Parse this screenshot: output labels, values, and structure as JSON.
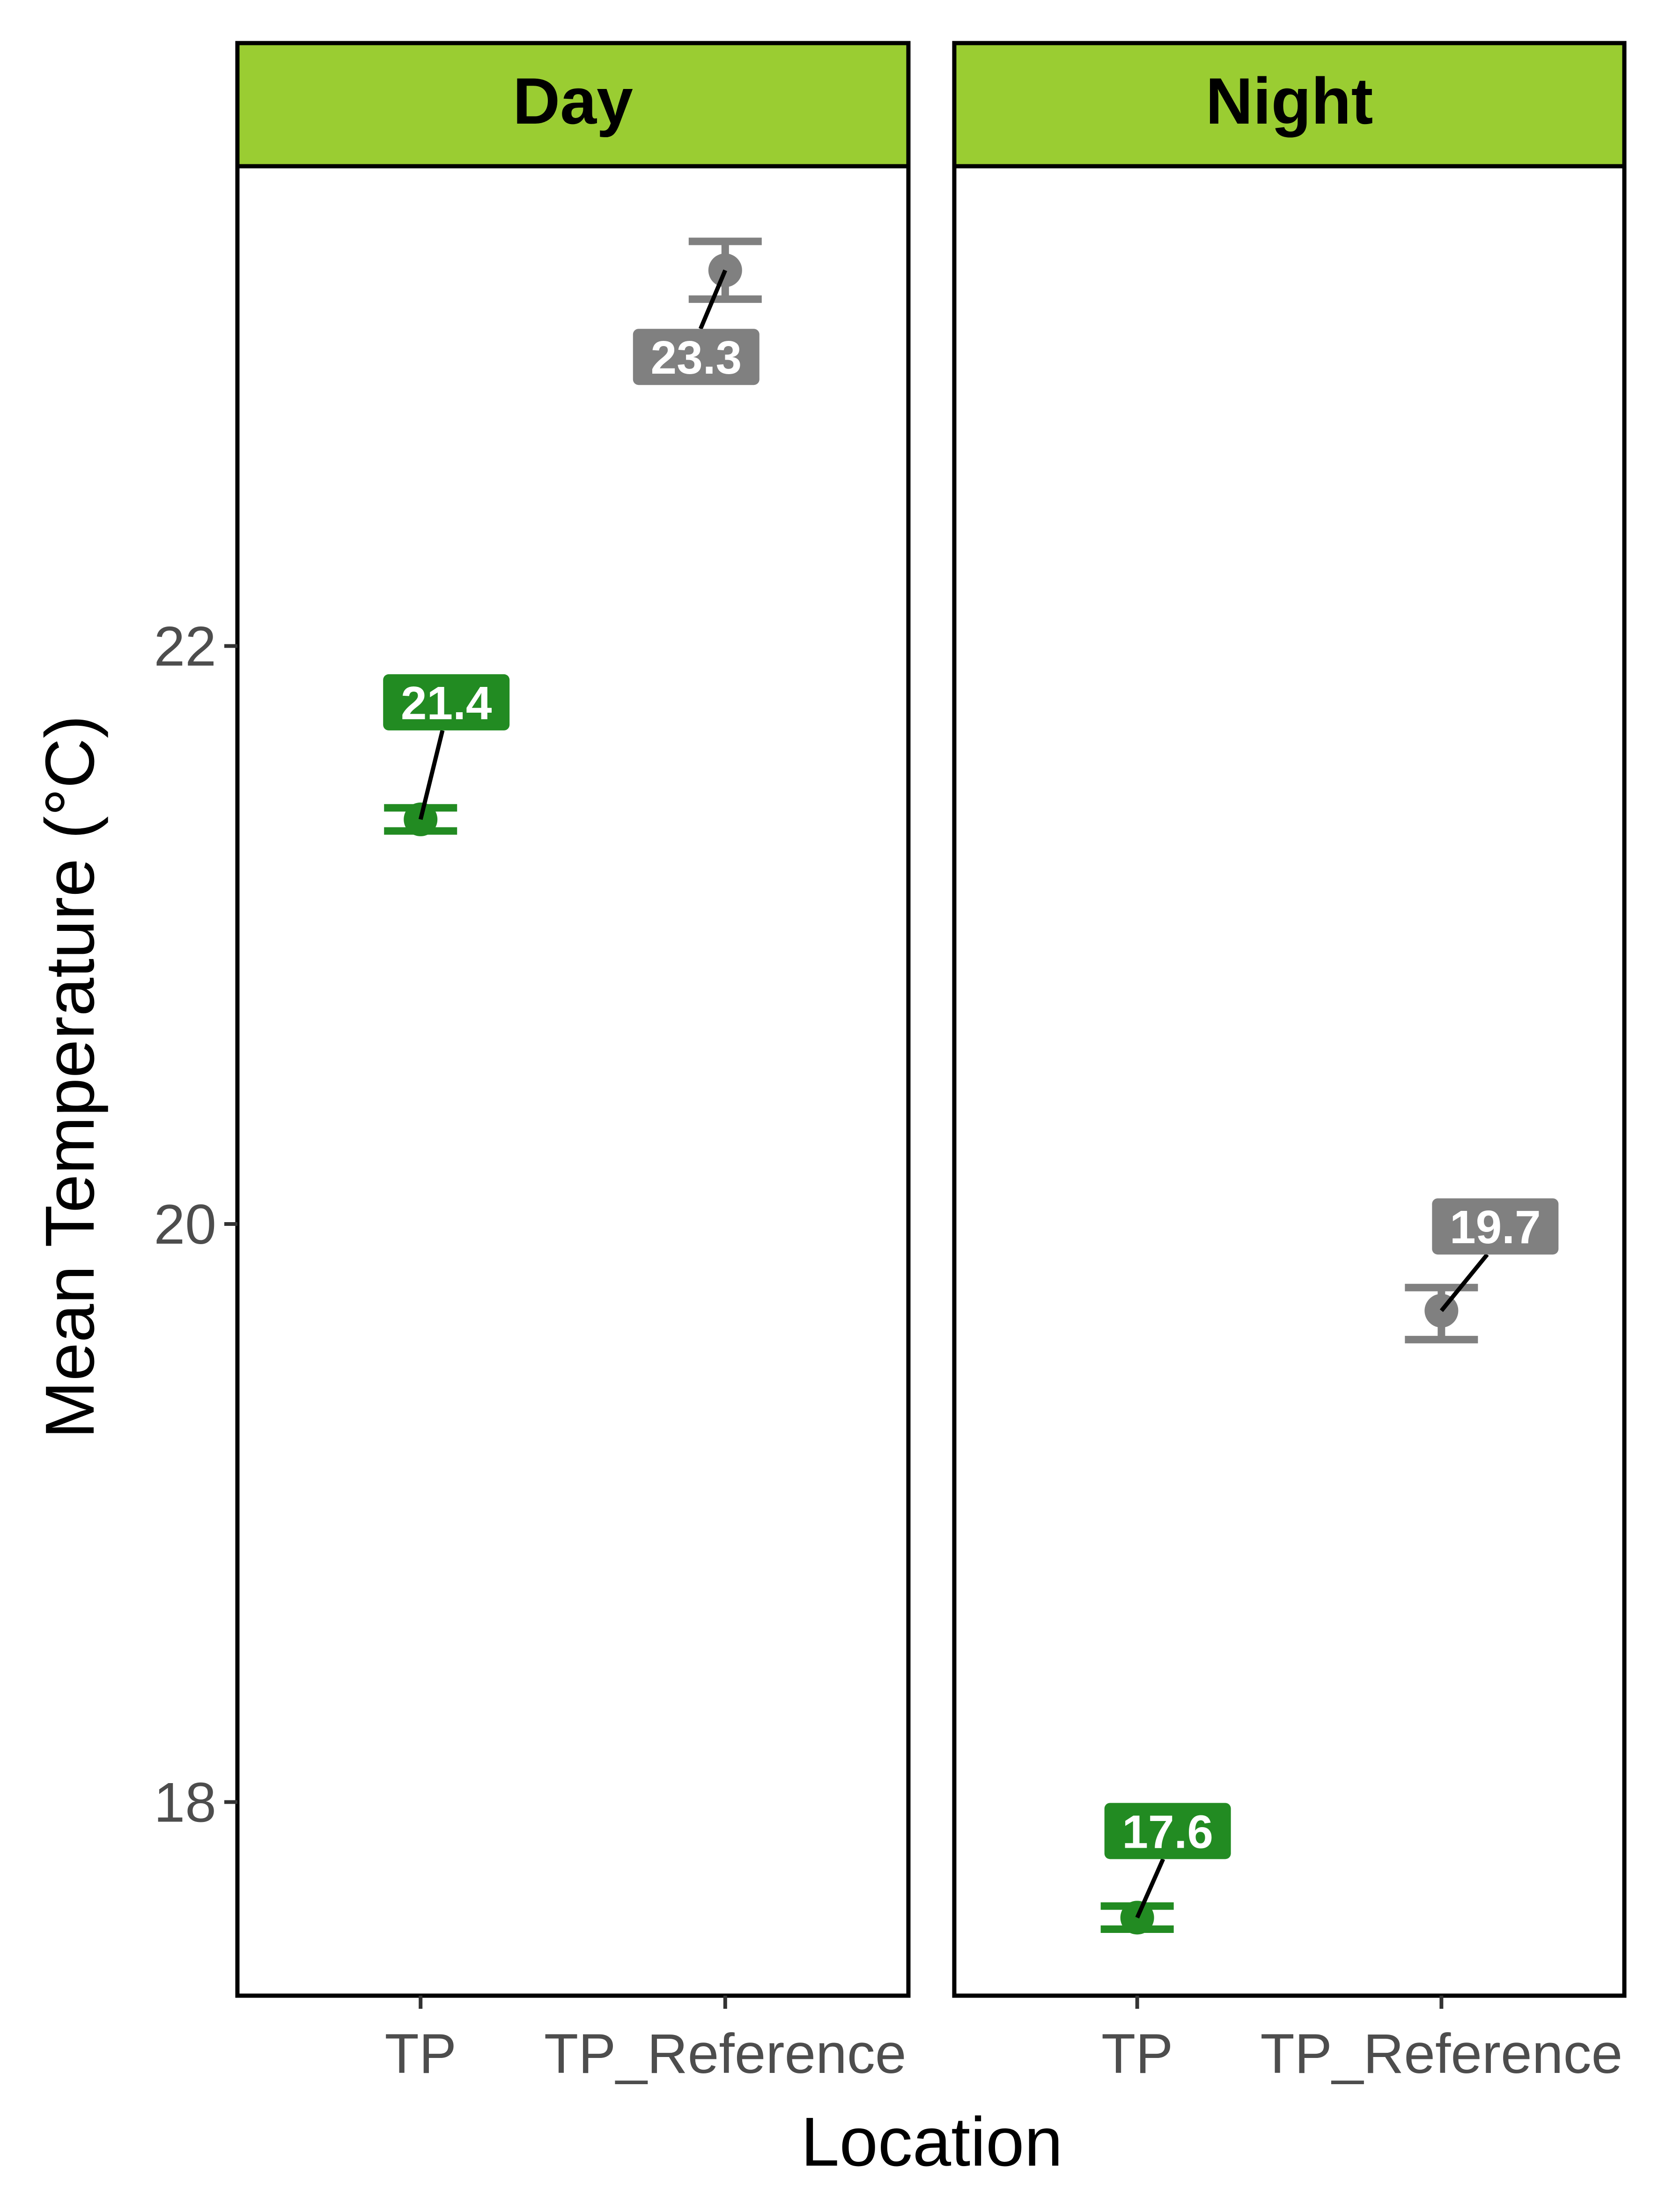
{
  "chart_data": {
    "type": "scatter",
    "xlabel": "Location",
    "ylabel": "Mean Temperature (°C)",
    "categories": [
      "TP",
      "TP_Reference"
    ],
    "y_ticks": [
      18,
      20,
      22
    ],
    "ylim": [
      17.33,
      23.66
    ],
    "grid": false,
    "legend": "none",
    "colors": {
      "TP": "#228B22",
      "TP_Reference": "#808080",
      "strip_fill": "#9ACD32"
    },
    "panels": [
      {
        "title": "Day",
        "points": [
          {
            "x": "TP",
            "y": 21.4,
            "ymin": 21.36,
            "ymax": 21.44,
            "label": "21.4"
          },
          {
            "x": "TP_Reference",
            "y": 23.3,
            "ymin": 23.2,
            "ymax": 23.4,
            "label": "23.3"
          }
        ]
      },
      {
        "title": "Night",
        "points": [
          {
            "x": "TP",
            "y": 17.6,
            "ymin": 17.56,
            "ymax": 17.64,
            "label": "17.6"
          },
          {
            "x": "TP_Reference",
            "y": 19.7,
            "ymin": 19.6,
            "ymax": 19.78,
            "label": "19.7"
          }
        ]
      }
    ]
  }
}
